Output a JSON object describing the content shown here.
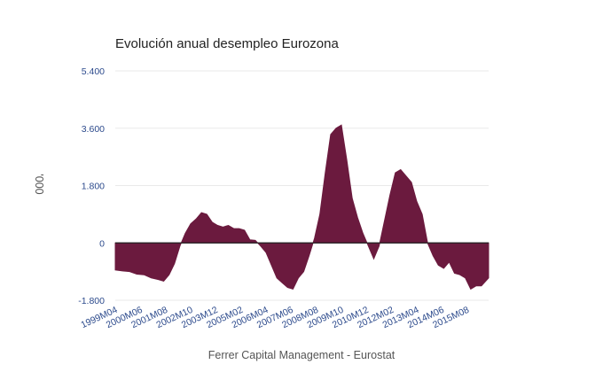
{
  "chart_data": {
    "type": "area",
    "title": "Evolución anual desempleo Eurozona",
    "ylabel": "'000",
    "xlabel": "",
    "source": "Ferrer Capital Management - Eurostat",
    "ylim": [
      -1800,
      5400
    ],
    "yticks": [
      {
        "value": 5400,
        "label": "5.400"
      },
      {
        "value": 3600,
        "label": "3.600"
      },
      {
        "value": 1800,
        "label": "1.800"
      },
      {
        "value": 0,
        "label": "0"
      },
      {
        "value": -1800,
        "label": "-1.800"
      }
    ],
    "x_start": "1999M04",
    "x_end": "2016M08",
    "xticks": [
      "1999M04",
      "2000M06",
      "2001M08",
      "2002M10",
      "2003M12",
      "2005M02",
      "2006M04",
      "2007M06",
      "2008M08",
      "2009M10",
      "2010M12",
      "2012M02",
      "2013M04",
      "2014M06",
      "2015M08"
    ],
    "grid": true,
    "legend": "none",
    "colors": {
      "fill": "#6b1a3e",
      "zero_line": "#222222",
      "grid": "#e9e9e9",
      "tick_text": "#2c4a8c"
    },
    "series": [
      {
        "points": [
          [
            "1999M04",
            -850
          ],
          [
            "1999M08",
            -880
          ],
          [
            "1999M12",
            -900
          ],
          [
            "2000M04",
            -980
          ],
          [
            "2000M08",
            -1000
          ],
          [
            "2000M12",
            -1100
          ],
          [
            "2001M04",
            -1150
          ],
          [
            "2001M07",
            -1200
          ],
          [
            "2001M10",
            -1000
          ],
          [
            "2002M01",
            -650
          ],
          [
            "2002M04",
            -100
          ],
          [
            "2002M07",
            300
          ],
          [
            "2002M10",
            600
          ],
          [
            "2003M01",
            750
          ],
          [
            "2003M04",
            950
          ],
          [
            "2003M07",
            900
          ],
          [
            "2003M10",
            650
          ],
          [
            "2004M01",
            550
          ],
          [
            "2004M04",
            500
          ],
          [
            "2004M07",
            550
          ],
          [
            "2004M10",
            450
          ],
          [
            "2005M01",
            450
          ],
          [
            "2005M04",
            400
          ],
          [
            "2005M07",
            100
          ],
          [
            "2005M10",
            80
          ],
          [
            "2006M01",
            -100
          ],
          [
            "2006M04",
            -300
          ],
          [
            "2006M07",
            -700
          ],
          [
            "2006M10",
            -1100
          ],
          [
            "2007M01",
            -1250
          ],
          [
            "2007M04",
            -1400
          ],
          [
            "2007M07",
            -1450
          ],
          [
            "2007M10",
            -1100
          ],
          [
            "2008M01",
            -900
          ],
          [
            "2008M04",
            -400
          ],
          [
            "2008M07",
            150
          ],
          [
            "2008M10",
            900
          ],
          [
            "2009M01",
            2200
          ],
          [
            "2009M04",
            3400
          ],
          [
            "2009M07",
            3600
          ],
          [
            "2009M10",
            3700
          ],
          [
            "2010M01",
            2600
          ],
          [
            "2010M04",
            1400
          ],
          [
            "2010M07",
            800
          ],
          [
            "2010M10",
            300
          ],
          [
            "2011M01",
            -100
          ],
          [
            "2011M04",
            -500
          ],
          [
            "2011M07",
            -100
          ],
          [
            "2011M10",
            700
          ],
          [
            "2012M01",
            1500
          ],
          [
            "2012M04",
            2200
          ],
          [
            "2012M07",
            2300
          ],
          [
            "2012M10",
            2100
          ],
          [
            "2013M01",
            1900
          ],
          [
            "2013M04",
            1300
          ],
          [
            "2013M07",
            900
          ],
          [
            "2013M10",
            0
          ],
          [
            "2014M01",
            -400
          ],
          [
            "2014M04",
            -700
          ],
          [
            "2014M07",
            -800
          ],
          [
            "2014M10",
            -600
          ],
          [
            "2015M01",
            -950
          ],
          [
            "2015M04",
            -1000
          ],
          [
            "2015M07",
            -1100
          ],
          [
            "2015M10",
            -1450
          ],
          [
            "2016M01",
            -1350
          ],
          [
            "2016M04",
            -1350
          ],
          [
            "2016M08",
            -1100
          ]
        ]
      }
    ]
  }
}
